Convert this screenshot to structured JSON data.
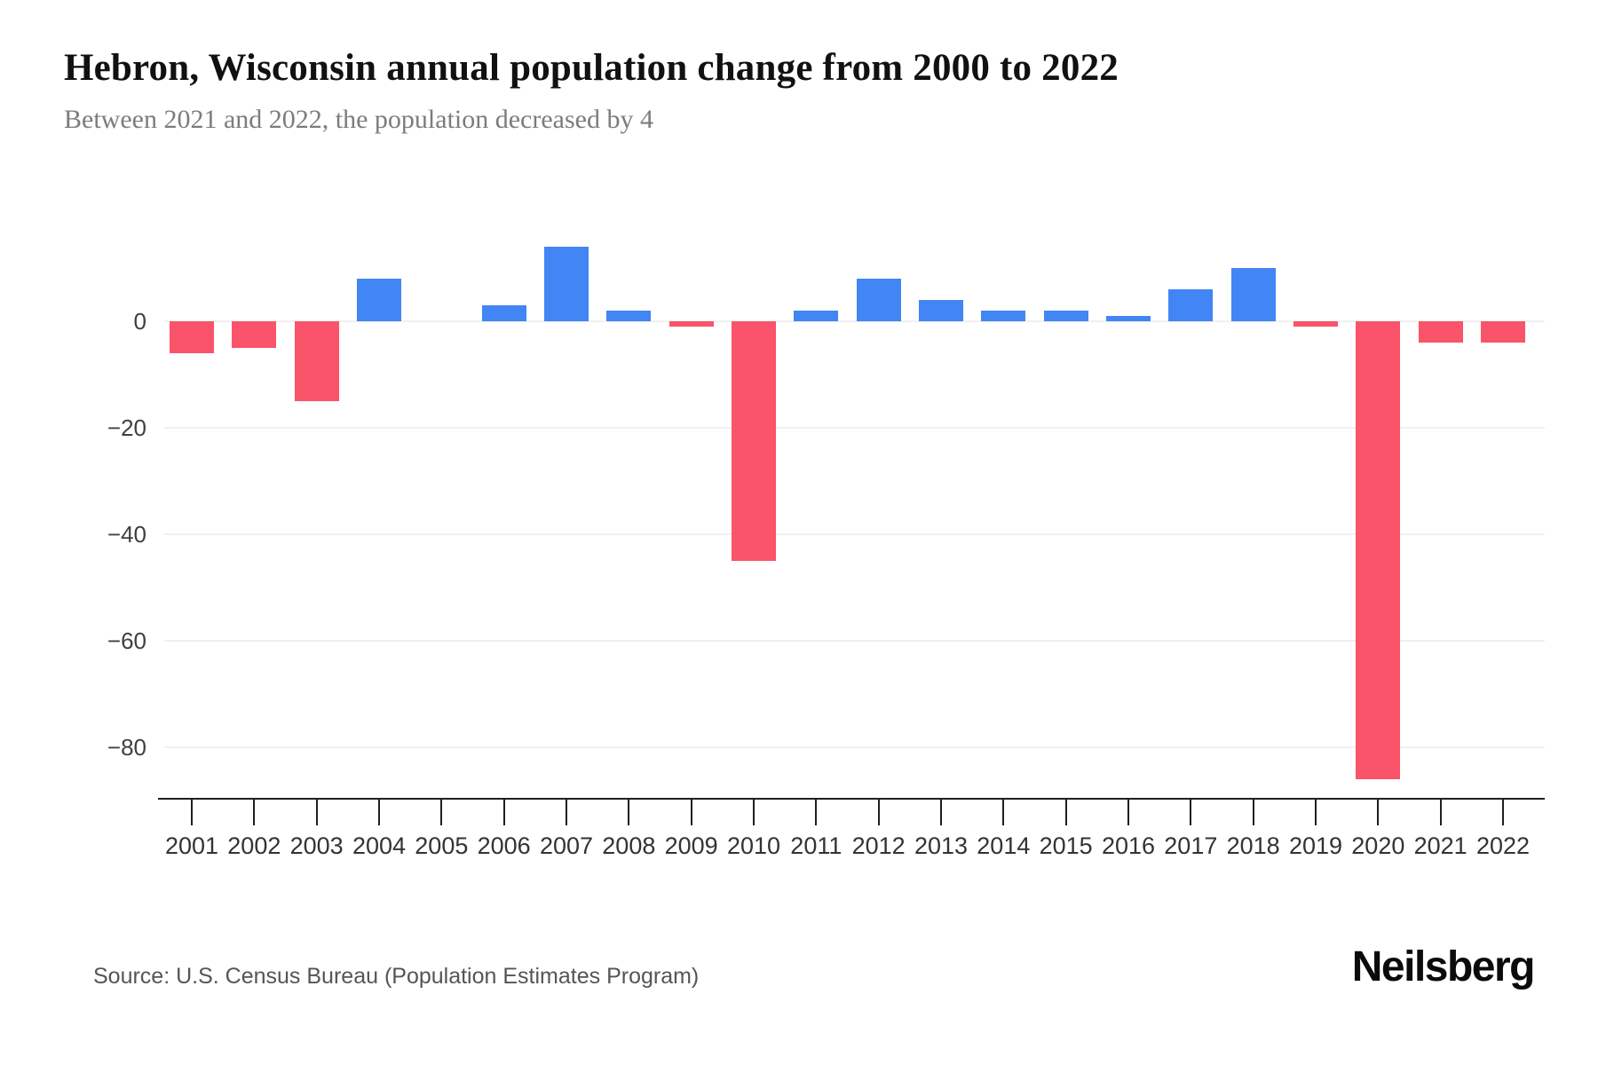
{
  "header": {
    "title": "Hebron, Wisconsin annual population change from 2000 to 2022",
    "subtitle": "Between 2021 and 2022, the population decreased by 4"
  },
  "footer": {
    "source": "Source: U.S. Census Bureau (Population Estimates Program)",
    "brand": "Neilsberg"
  },
  "chart_data": {
    "type": "bar",
    "title": "Hebron, Wisconsin annual population change from 2000 to 2022",
    "categories": [
      "2001",
      "2002",
      "2003",
      "2004",
      "2005",
      "2006",
      "2007",
      "2008",
      "2009",
      "2010",
      "2011",
      "2012",
      "2013",
      "2014",
      "2015",
      "2016",
      "2017",
      "2018",
      "2019",
      "2020",
      "2021",
      "2022"
    ],
    "values": [
      -6,
      -5,
      -15,
      8,
      0,
      3,
      14,
      2,
      -1,
      -45,
      2,
      8,
      4,
      2,
      2,
      1,
      6,
      10,
      -1,
      -86,
      -4,
      -4
    ],
    "xlabel": "",
    "ylabel": "",
    "ylim": [
      -90,
      22
    ],
    "yticks": [
      0,
      -20,
      -40,
      -60,
      -80
    ],
    "ytick_labels": [
      "0",
      "−20",
      "−40",
      "−60",
      "−80"
    ],
    "grid": true,
    "legend": false,
    "colors": {
      "positive": "#4285F4",
      "negative": "#F95469",
      "gridline": "#F0F0F0",
      "axis": "#1F1F1F",
      "tick_label": "#333333"
    }
  }
}
